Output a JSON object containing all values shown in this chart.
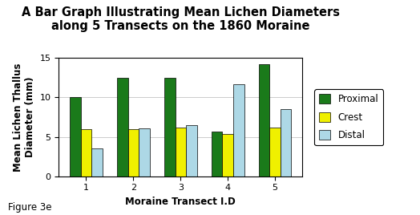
{
  "title": "A Bar Graph Illustrating Mean Lichen Diameters\nalong 5 Transects on the 1860 Moraine",
  "xlabel": "Moraine Transect I.D",
  "ylabel": "Mean Lichen Thallus\nDiameter (mm)",
  "figure_label": "Figure 3e",
  "categories": [
    "1",
    "2",
    "3",
    "4",
    "5"
  ],
  "proximal": [
    10.0,
    12.5,
    12.5,
    5.7,
    14.2
  ],
  "crest": [
    6.0,
    6.0,
    6.2,
    5.4,
    6.2
  ],
  "distal": [
    3.5,
    6.1,
    6.5,
    11.7,
    8.5
  ],
  "bar_colors": {
    "Proximal": "#1a7a1a",
    "Crest": "#f0f000",
    "Distal": "#add8e6"
  },
  "legend_labels": [
    "Proximal",
    "Crest",
    "Distal"
  ],
  "ylim": [
    0,
    15
  ],
  "yticks": [
    0,
    5,
    10,
    15
  ],
  "background_color": "#ffffff",
  "plot_bg_color": "#ffffff",
  "title_fontsize": 10.5,
  "axis_label_fontsize": 8.5,
  "tick_fontsize": 8,
  "legend_fontsize": 8.5,
  "figure_label_fontsize": 8.5,
  "bar_width": 0.23
}
